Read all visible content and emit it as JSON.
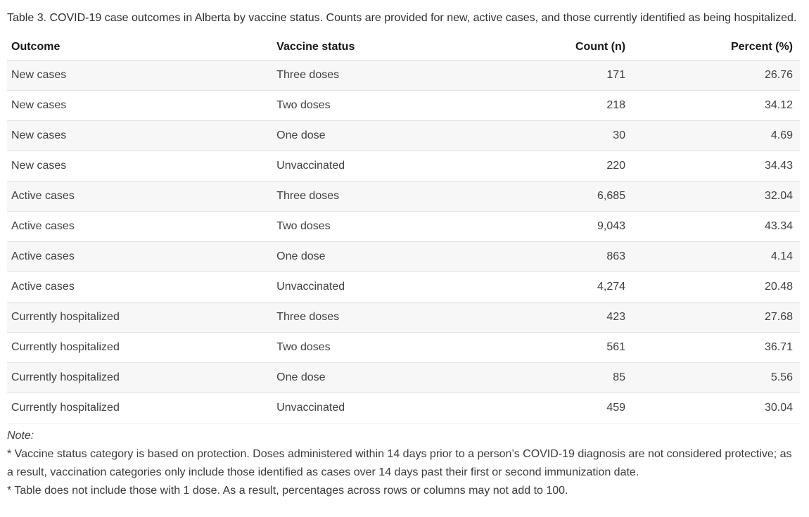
{
  "caption": "Table 3. COVID-19 case outcomes in Alberta by vaccine status. Counts are provided for new, active cases, and those currently identified as being hospitalized.",
  "chart_data": {
    "type": "table",
    "title": "Table 3. COVID-19 case outcomes in Alberta by vaccine status",
    "columns": [
      "Outcome",
      "Vaccine status",
      "Count (n)",
      "Percent (%)"
    ],
    "rows": [
      [
        "New cases",
        "Three doses",
        "171",
        "26.76"
      ],
      [
        "New cases",
        "Two doses",
        "218",
        "34.12"
      ],
      [
        "New cases",
        "One dose",
        "30",
        "4.69"
      ],
      [
        "New cases",
        "Unvaccinated",
        "220",
        "34.43"
      ],
      [
        "Active cases",
        "Three doses",
        "6,685",
        "32.04"
      ],
      [
        "Active cases",
        "Two doses",
        "9,043",
        "43.34"
      ],
      [
        "Active cases",
        "One dose",
        "863",
        "4.14"
      ],
      [
        "Active cases",
        "Unvaccinated",
        "4,274",
        "20.48"
      ],
      [
        "Currently hospitalized",
        "Three doses",
        "423",
        "27.68"
      ],
      [
        "Currently hospitalized",
        "Two doses",
        "561",
        "36.71"
      ],
      [
        "Currently hospitalized",
        "One dose",
        "85",
        "5.56"
      ],
      [
        "Currently hospitalized",
        "Unvaccinated",
        "459",
        "30.04"
      ]
    ],
    "layout": {
      "striped_rows": true,
      "numeric_columns_right_aligned": true
    }
  },
  "notes": {
    "label": "Note:",
    "items": [
      "* Vaccine status category is based on protection. Doses administered within 14 days prior to a person’s COVID-19 diagnosis are not considered protective; as a result, vaccination categories only include those identified as cases over 14 days past their first or second immunization date.",
      "* Table does not include those with 1 dose. As a result, percentages across rows or columns may not add to 100."
    ]
  },
  "colors": {
    "row_stripe": "#f7f7f7",
    "row_border": "#e3e3e3",
    "header_text": "#161616",
    "body_text": "#404040",
    "background": "#ffffff"
  }
}
